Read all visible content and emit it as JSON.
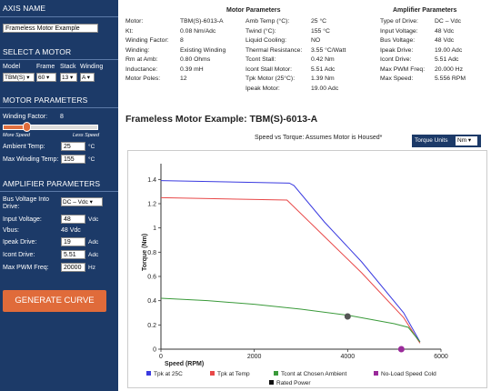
{
  "sidebar": {
    "axis_name_head": "AXIS NAME",
    "axis_name_value": "Frameless Motor Example",
    "select_motor_head": "SELECT A MOTOR",
    "model_label": "Model",
    "frame_label": "Frame",
    "stack_label": "Stack",
    "winding_label": "Winding",
    "model_value": "TBM(S)",
    "frame_value": "60",
    "stack_value": "13",
    "winding_value": "A",
    "motor_params_head": "MOTOR PARAMETERS",
    "winding_factor_label": "Winding Factor:",
    "winding_factor_value": "8",
    "winding_factor_level": 0.25,
    "more_speed": "More Speed",
    "less_speed": "Less Speed",
    "ambient_label": "Ambient Temp:",
    "ambient_value": "25",
    "ambient_unit": "°C",
    "max_winding_label": "Max Winding Temp:",
    "max_winding_value": "155",
    "max_winding_unit": "°C",
    "amp_params_head": "AMPLIFIER PARAMETERS",
    "bus_voltage_label1": "Bus Voltage Into",
    "bus_voltage_label2": "Drive:",
    "bus_voltage_value": "DC – Vdc",
    "input_voltage_label": "Input Voltage:",
    "input_voltage_value": "48",
    "input_voltage_unit": "Vdc",
    "vbus_label": "Vbus:",
    "vbus_value": "48 Vdc",
    "ipeak_label": "Ipeak Drive:",
    "ipeak_value": "19",
    "ipeak_unit": "Adc",
    "icont_label": "Icont Drive:",
    "icont_value": "5.51",
    "icont_unit": "Adc",
    "pwm_label": "Max PWM Freq:",
    "pwm_value": "20000",
    "pwm_unit": "Hz",
    "generate_label": "GENERATE CURVE"
  },
  "motor_params": {
    "title": "Motor Parameters",
    "col1": [
      [
        "Motor:",
        "TBM(S)-6013-A"
      ],
      [
        "Kt:",
        "0.08 Nm/Adc"
      ],
      [
        "Winding Factor:",
        "8"
      ],
      [
        "Winding:",
        "Existing Winding"
      ],
      [
        "Rm at Amb:",
        "0.80 Ohms"
      ],
      [
        "Inductance:",
        "0.39 mH"
      ],
      [
        "Motor Poles:",
        "12"
      ]
    ],
    "col2": [
      [
        "Amb Temp (°C):",
        "25 °C"
      ],
      [
        "Twind (°C):",
        "155 °C"
      ],
      [
        "Liquid Cooling:",
        "NO"
      ],
      [
        "Thermal Resistance:",
        "3.55 °C/Watt"
      ],
      [
        "Tcont Stall:",
        "0.42 Nm"
      ],
      [
        "Icont Stall Motor:",
        "5.51 Adc"
      ],
      [
        "Tpk Motor (25°C):",
        "1.39 Nm"
      ],
      [
        "Ipeak Motor:",
        "19.00 Adc"
      ]
    ]
  },
  "amp_params": {
    "title": "Amplifier Parameters",
    "rows": [
      [
        "Type of Drive:",
        "DC – Vdc"
      ],
      [
        "Input Voltage:",
        "48 Vdc"
      ],
      [
        "Bus Voltage:",
        "48 Vdc"
      ],
      [
        "Ipeak Drive:",
        "19.00 Adc"
      ],
      [
        "Icont Drive:",
        "5.51 Adc"
      ],
      [
        "Max PWM Freq:",
        "20.000 Hz"
      ],
      [
        "Max Speed:",
        "5.556 RPM"
      ]
    ]
  },
  "main_title": "Frameless Motor Example: TBM(S)-6013-A",
  "chart_subtitle": "Speed vs Torque: Assumes Motor is Housed*",
  "torque_units_label": "Torque Units",
  "torque_units_value": "Nm",
  "chart_data": {
    "type": "line",
    "title": "",
    "xlabel": "Speed (RPM)",
    "ylabel": "Torque (Nm)",
    "xlim": [
      0,
      6000
    ],
    "ylim": [
      0,
      1.5
    ],
    "xticks": [
      0,
      2000,
      4000,
      6000
    ],
    "yticks": [
      0,
      0.2,
      0.4,
      0.6,
      0.8,
      1,
      1.2,
      1.4
    ],
    "grid": false,
    "legend_position": "bottom",
    "series": [
      {
        "name": "Tpk at 25C",
        "color": "#3a3ae0",
        "x": [
          0,
          2750,
          2850,
          3500,
          4300,
          5200,
          5550
        ],
        "y": [
          1.39,
          1.37,
          1.35,
          1.05,
          0.72,
          0.3,
          0.06
        ]
      },
      {
        "name": "Tpk at Temp",
        "color": "#e84848",
        "x": [
          0,
          2700,
          3500,
          4300,
          5200,
          5550
        ],
        "y": [
          1.25,
          1.23,
          0.93,
          0.63,
          0.26,
          0.05
        ]
      },
      {
        "name": "Tcont at Chosen Ambient",
        "color": "#3a9a3a",
        "x": [
          0,
          1000,
          2000,
          3000,
          4000,
          5000,
          5300,
          5550
        ],
        "y": [
          0.42,
          0.4,
          0.37,
          0.33,
          0.28,
          0.21,
          0.18,
          0.06
        ]
      }
    ],
    "points": [
      {
        "name": "No-Load Speed Cold",
        "color": "#9a2a9a",
        "x": 5150,
        "y": 0
      },
      {
        "name": "Rated Power",
        "color": "#555555",
        "x": 4000,
        "y": 0.27
      }
    ],
    "legend": [
      "Tpk at 25C",
      "Tpk at Temp",
      "Tcont at Chosen Ambient",
      "No-Load Speed Cold",
      "Rated Power"
    ]
  }
}
